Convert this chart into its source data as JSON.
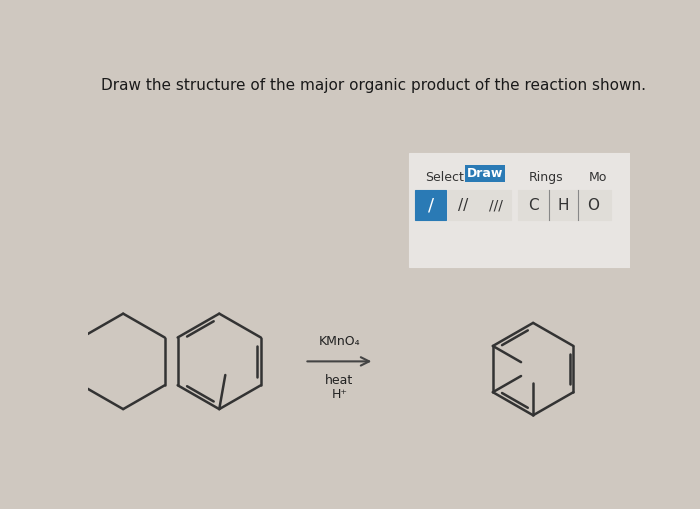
{
  "title": "Draw the structure of the major organic product of the reaction shown.",
  "title_fontsize": 11,
  "background_color": "#cfc8c0",
  "toolbar_panel_color": "#e8e5e2",
  "toolbar_border_color": "#aaaaaa",
  "draw_button_color": "#2a7ab5",
  "bond_button_bg": "#2a7ab5",
  "atom_button_bg": "#ffffff",
  "atom_button_border": "#888888",
  "reagent_text": "KMnO₄",
  "reagent2_text": "heat",
  "reagent3_text": "H⁺",
  "mol_color": "#333333",
  "arrow_color": "#444444"
}
